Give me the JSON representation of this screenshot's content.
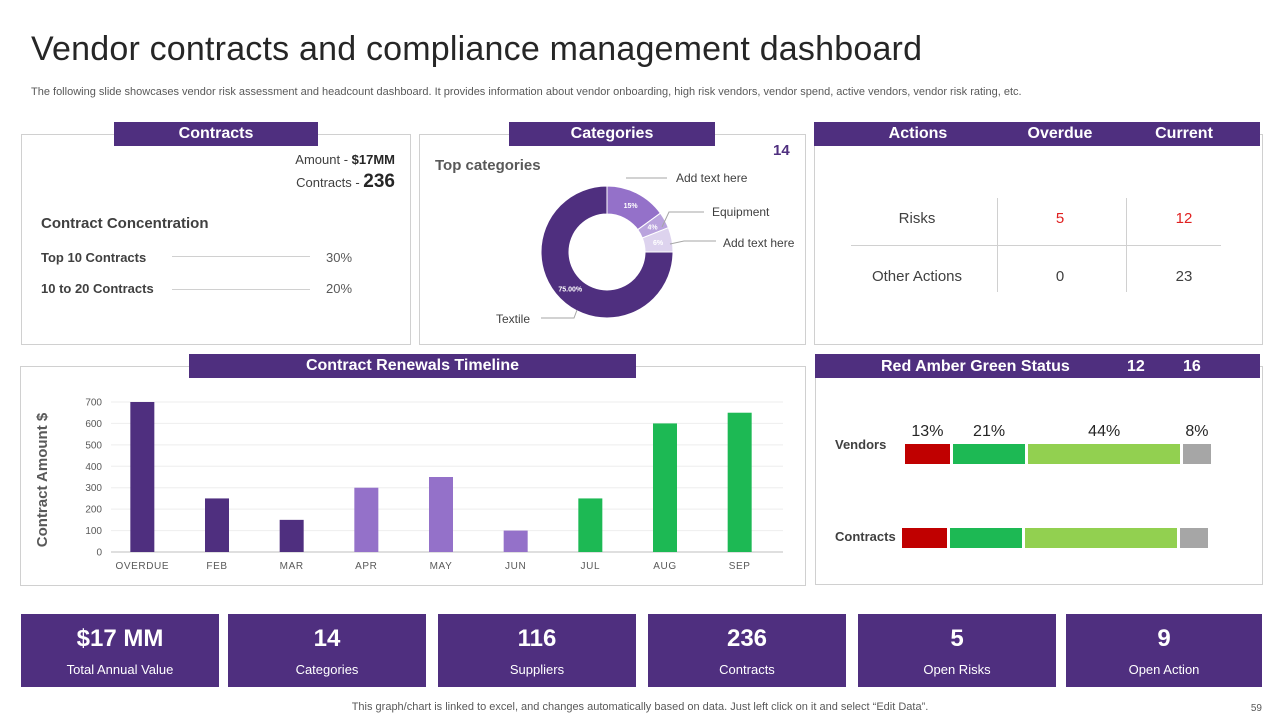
{
  "title": "Vendor contracts and compliance management dashboard",
  "subtitle": "The following slide showcases vendor risk assessment and headcount dashboard. It provides information about vendor onboarding, high risk vendors, vendor spend, active vendors, vendor risk rating, etc.",
  "contracts": {
    "header": "Contracts",
    "amount_label": "Amount - ",
    "amount_value": "$17MM",
    "contracts_label": "Contracts - ",
    "contracts_value": "236",
    "concentration_title": "Contract Concentration",
    "rows": [
      {
        "label": "Top 10 Contracts",
        "value": "30%"
      },
      {
        "label": "10 to 20 Contracts",
        "value": "20%"
      }
    ]
  },
  "categories": {
    "header": "Categories",
    "count": "14",
    "subtitle": "Top categories",
    "callouts": [
      "Add text here",
      "Equipment",
      "Add text here",
      "Textile"
    ]
  },
  "actions": {
    "headers": [
      "Actions",
      "Overdue",
      "Current"
    ],
    "rows": [
      {
        "label": "Risks",
        "overdue": "5",
        "current": "12"
      },
      {
        "label": "Other Actions",
        "overdue": "0",
        "current": "23"
      }
    ],
    "alert_color": "#e02020"
  },
  "rag": {
    "header": "Red Amber Green Status",
    "num1": "12",
    "num2": "16",
    "rows": [
      {
        "label": "Vendors",
        "segments": [
          13,
          21,
          44,
          8
        ]
      },
      {
        "label": "Contracts",
        "segments": [
          13,
          21,
          44,
          8
        ]
      }
    ],
    "pct_labels": [
      "13%",
      "21%",
      "44%",
      "8%"
    ],
    "colors": [
      "#c00000",
      "#1db954",
      "#92d050",
      "#a6a6a6"
    ]
  },
  "timeline": {
    "header": "Contract Renewals Timeline"
  },
  "chart_data": [
    {
      "type": "pie",
      "title": "Top categories",
      "labels": [
        "Textile",
        "Add text here",
        "Equipment",
        "Add text here"
      ],
      "values": [
        75,
        15,
        4,
        6
      ],
      "value_labels": [
        "75.00%",
        "15%",
        "4%",
        "6%"
      ],
      "colors": [
        "#4f2f7f",
        "#9471c9",
        "#b9a3dd",
        "#ddd3ee"
      ]
    },
    {
      "type": "bar",
      "title": "Contract Renewals Timeline",
      "xlabel": "",
      "ylabel": "Contract Amount $",
      "categories": [
        "OVERDUE",
        "FEB",
        "MAR",
        "APR",
        "MAY",
        "JUN",
        "JUL",
        "AUG",
        "SEP"
      ],
      "values": [
        700,
        250,
        150,
        300,
        350,
        100,
        250,
        600,
        650
      ],
      "colors": [
        "#4f2f7f",
        "#4f2f7f",
        "#4f2f7f",
        "#9471c9",
        "#9471c9",
        "#9471c9",
        "#1db954",
        "#1db954",
        "#1db954"
      ],
      "ylim": [
        0,
        700
      ],
      "yticks": [
        "0",
        "100",
        "200",
        "300",
        "400",
        "500",
        "600",
        "700"
      ],
      "grid": true
    }
  ],
  "kpis": [
    {
      "value": "$17 MM",
      "label": "Total Annual Value"
    },
    {
      "value": "14",
      "label": "Categories"
    },
    {
      "value": "116",
      "label": "Suppliers"
    },
    {
      "value": "236",
      "label": "Contracts"
    },
    {
      "value": "5",
      "label": "Open Risks"
    },
    {
      "value": "9",
      "label": "Open Action"
    }
  ],
  "footer": "This graph/chart is linked to excel,  and changes automatically based on data. Just left click on it and select “Edit Data”.",
  "page_number": "59",
  "brand_color": "#4f2f7f"
}
